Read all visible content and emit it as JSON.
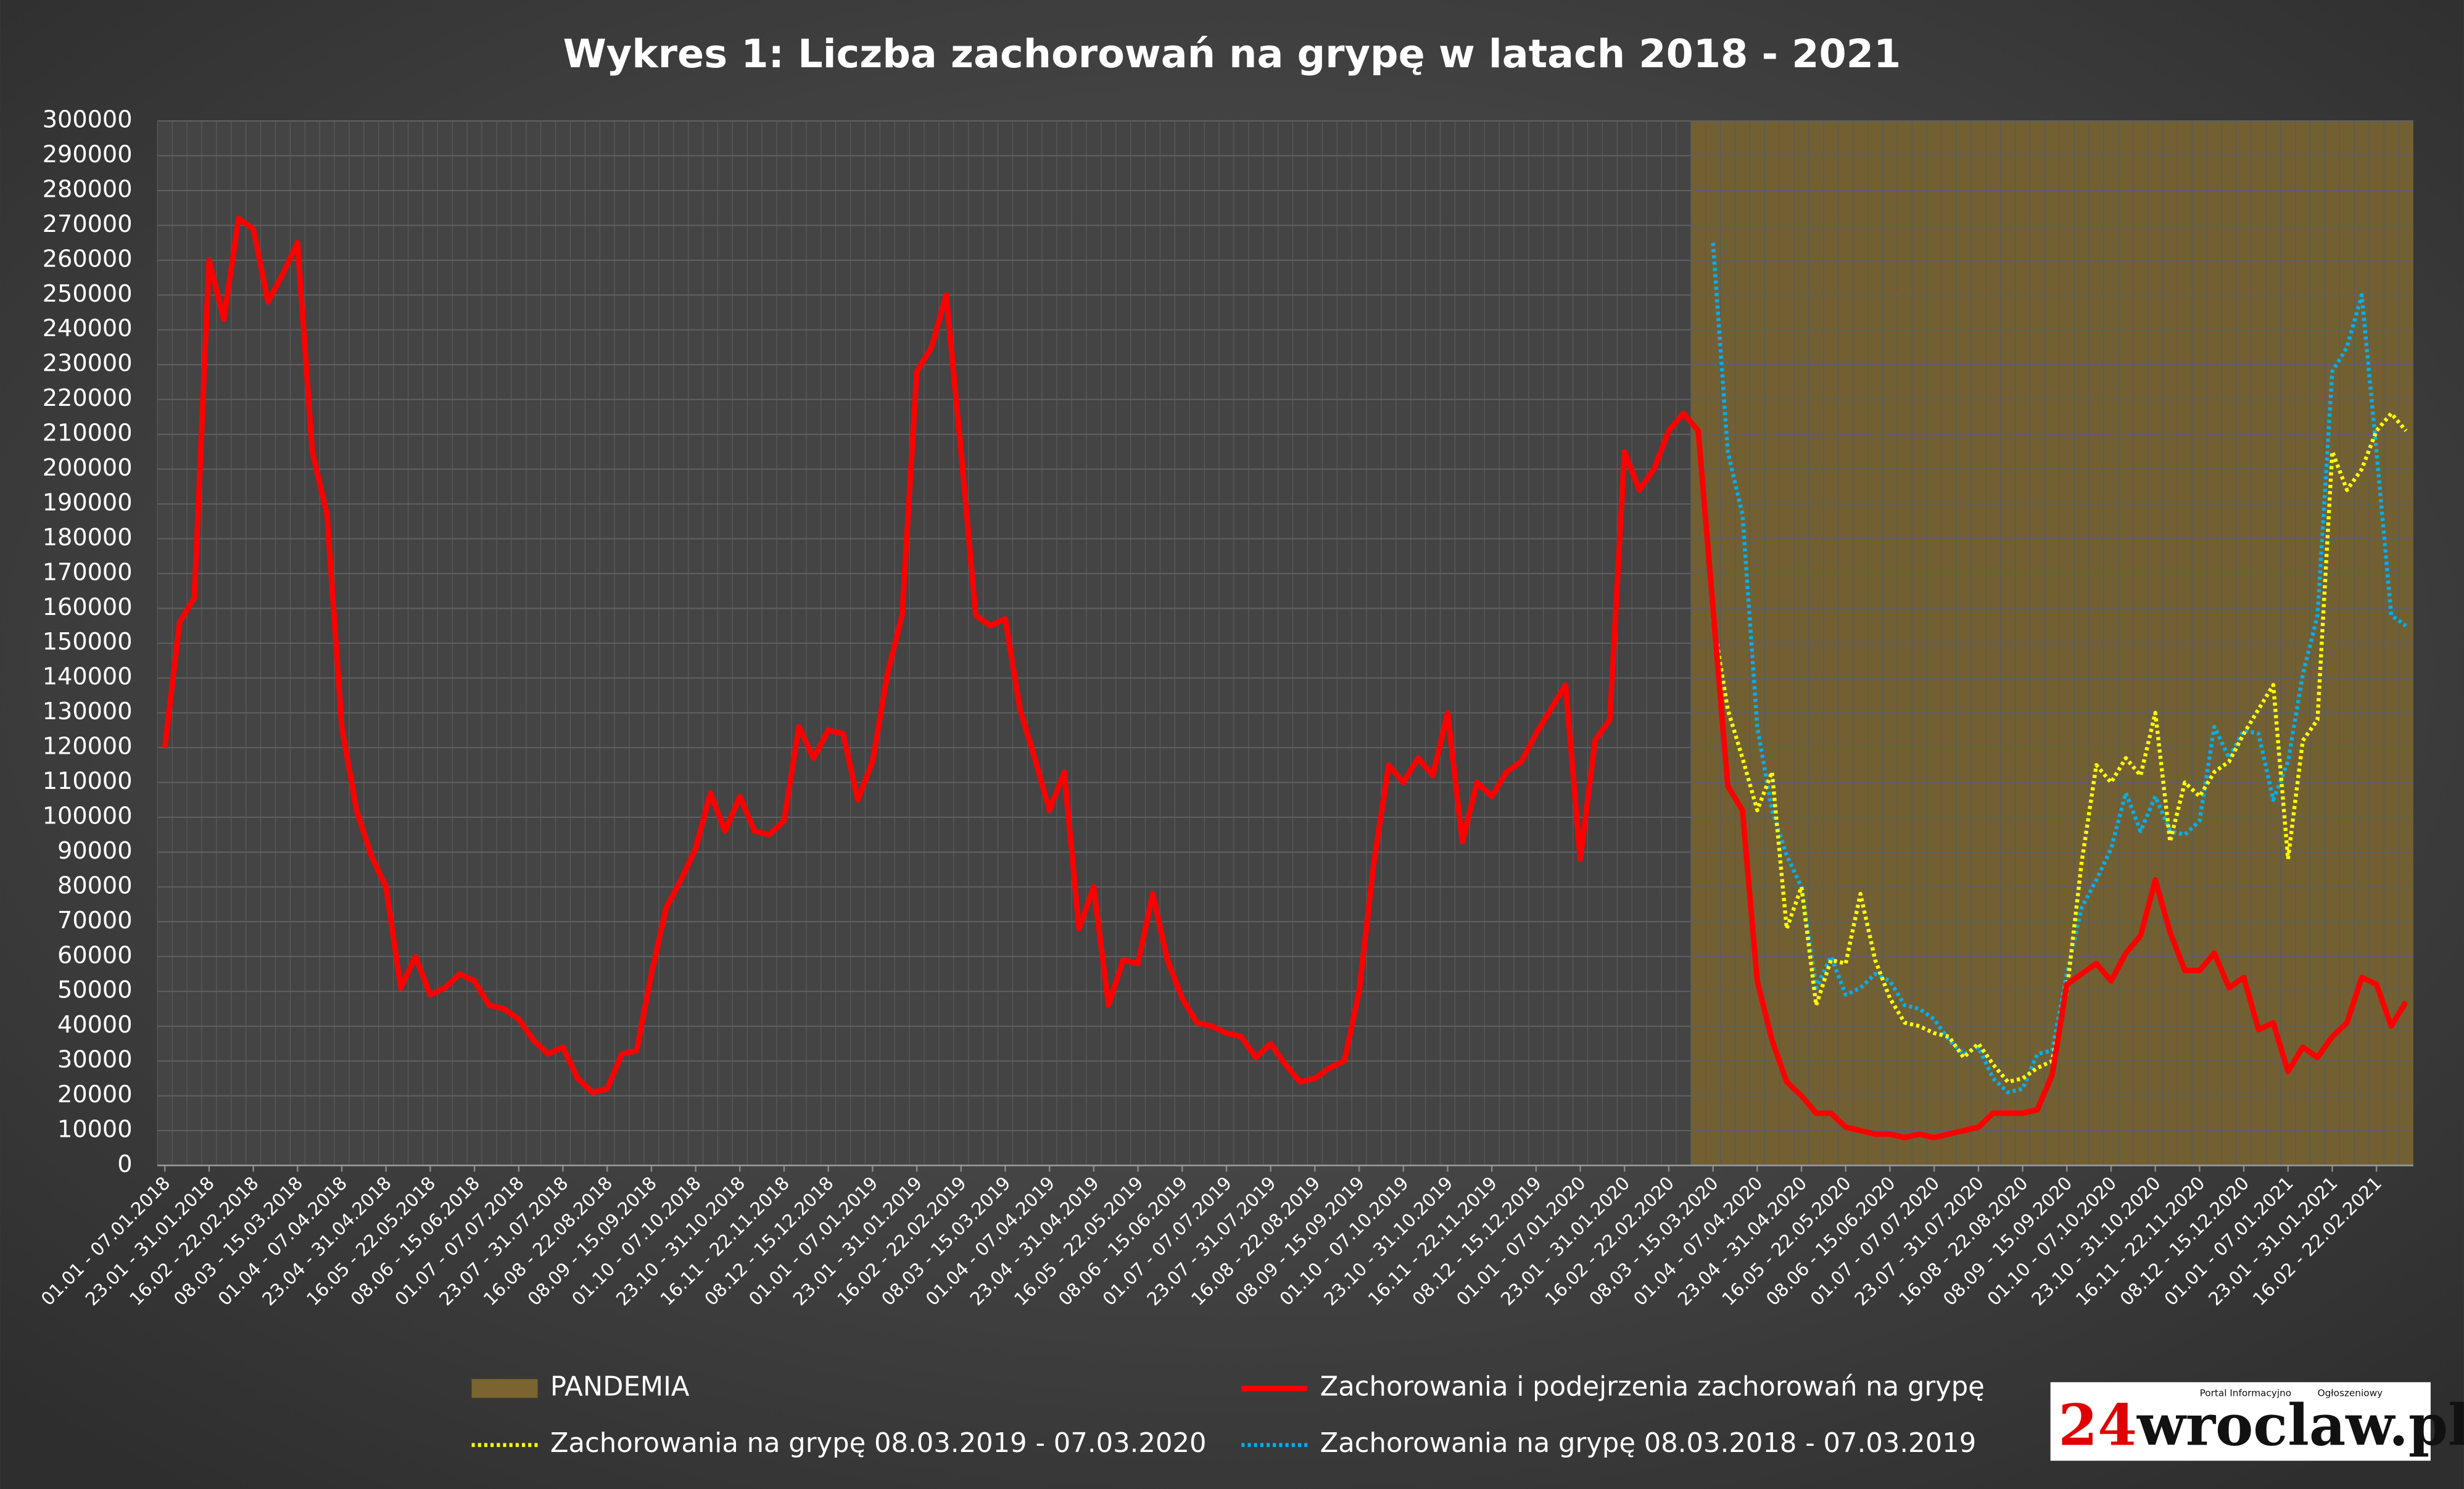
{
  "chart_data": {
    "type": "line",
    "title": "Wykres 1: Liczba zachorowań na grypę w latach 2018 - 2021",
    "categories": [
      "01.01 - 07.01.2018",
      null,
      null,
      "23.01 - 31.01.2018",
      null,
      null,
      "16.02 - 22.02.2018",
      null,
      null,
      "08.03 - 15.03.2018",
      null,
      null,
      "01.04 - 07.04.2018",
      null,
      null,
      "23.04 - 31.04.2018",
      null,
      null,
      "16.05 - 22.05.2018",
      null,
      null,
      "08.06 - 15.06.2018",
      null,
      null,
      "01.07 - 07.07.2018",
      null,
      null,
      "23.07 - 31.07.2018",
      null,
      null,
      "16.08 - 22.08.2018",
      null,
      null,
      "08.09 - 15.09.2018",
      null,
      null,
      "01.10 - 07.10.2018",
      null,
      null,
      "23.10 - 31.10.2018",
      null,
      null,
      "16.11 - 22.11.2018",
      null,
      null,
      "08.12 - 15.12.2018",
      null,
      null,
      "01.01 - 07.01.2019",
      null,
      null,
      "23.01 - 31.01.2019",
      null,
      null,
      "16.02 - 22.02.2019",
      null,
      null,
      "08.03 - 15.03.2019",
      null,
      null,
      "01.04 - 07.04.2019",
      null,
      null,
      "23.04 - 31.04.2019",
      null,
      null,
      "16.05 - 22.05.2019",
      null,
      null,
      "08.06 - 15.06.2019",
      null,
      null,
      "01.07 - 07.07.2019",
      null,
      null,
      "23.07 - 31.07.2019",
      null,
      null,
      "16.08 - 22.08.2019",
      null,
      null,
      "08.09 - 15.09.2019",
      null,
      null,
      "01.10 - 07.10.2019",
      null,
      null,
      "23.10 - 31.10.2019",
      null,
      null,
      "16.11 - 22.11.2019",
      null,
      null,
      "08.12 - 15.12.2019",
      null,
      null,
      "01.01 - 07.01.2020",
      null,
      null,
      "23.01 - 31.01.2020",
      null,
      null,
      "16.02 - 22.02.2020",
      null,
      null,
      "08.03 - 15.03.2020",
      null,
      null,
      "01.04 - 07.04.2020",
      null,
      null,
      "23.04 - 31.04.2020",
      null,
      null,
      "16.05 - 22.05.2020",
      null,
      null,
      "08.06 - 15.06.2020",
      null,
      null,
      "01.07 - 07.07.2020",
      null,
      null,
      "23.07 - 31.07.2020",
      null,
      null,
      "16.08 - 22.08.2020",
      null,
      null,
      "08.09 - 15.09.2020",
      null,
      null,
      "01.10 - 07.10.2020",
      null,
      null,
      "23.10 - 31.10.2020",
      null,
      null,
      "16.11 - 22.11.2020",
      null,
      null,
      "08.12 - 15.12.2020",
      null,
      null,
      "01.01 - 07.01.2021",
      null,
      null,
      "23.01 - 31.01.2021",
      null,
      null,
      "16.02 - 22.02.2021",
      null,
      null
    ],
    "series": [
      {
        "name": "Zachorowania i podejrzenia zachorowań na grypę",
        "color": "#ff0000",
        "dash": "solid",
        "values": [
          120000,
          156000,
          163000,
          260000,
          243000,
          272000,
          269000,
          248000,
          256000,
          265000,
          205000,
          187000,
          126000,
          102000,
          89000,
          80000,
          51000,
          60000,
          49000,
          51000,
          55000,
          53000,
          46000,
          45000,
          42000,
          36000,
          32000,
          34000,
          25000,
          21000,
          22000,
          32000,
          33000,
          55000,
          74000,
          82000,
          91000,
          107000,
          96000,
          106000,
          96000,
          95000,
          99000,
          126000,
          117000,
          125000,
          124000,
          105000,
          116000,
          141000,
          158000,
          228000,
          235000,
          250000,
          205000,
          158000,
          155000,
          157000,
          131000,
          117000,
          102000,
          113000,
          68000,
          80000,
          46000,
          59000,
          58000,
          78000,
          59000,
          48000,
          41000,
          40000,
          38000,
          37000,
          31000,
          35000,
          29000,
          24000,
          25000,
          28000,
          30000,
          50000,
          87000,
          115000,
          110000,
          117000,
          112000,
          130000,
          93000,
          110000,
          106000,
          113000,
          116000,
          124000,
          131000,
          138000,
          88000,
          122000,
          128000,
          205000,
          194000,
          200000,
          211000,
          216000,
          211000,
          160000,
          109000,
          102000,
          53000,
          36000,
          24000,
          20000,
          15000,
          15000,
          11000,
          10000,
          9000,
          9000,
          8000,
          9000,
          8000,
          9000,
          10000,
          11000,
          15000,
          15000,
          15000,
          16000,
          26000,
          52000,
          55000,
          58000,
          53000,
          61000,
          66000,
          82000,
          67000,
          56000,
          56000,
          61000,
          51000,
          54000,
          39000,
          41000,
          27000,
          34000,
          31000,
          37000,
          41000,
          54000,
          52000,
          40000,
          47000
        ]
      },
      {
        "name": "Zachorowania na grypę 08.03.2019 - 07.03.2020",
        "color": "#ffff00",
        "dash": "dotted",
        "values": [
          null,
          null,
          null,
          null,
          null,
          null,
          null,
          null,
          null,
          null,
          null,
          null,
          null,
          null,
          null,
          null,
          null,
          null,
          null,
          null,
          null,
          null,
          null,
          null,
          null,
          null,
          null,
          null,
          null,
          null,
          null,
          null,
          null,
          null,
          null,
          null,
          null,
          null,
          null,
          null,
          null,
          null,
          null,
          null,
          null,
          null,
          null,
          null,
          null,
          null,
          null,
          null,
          null,
          null,
          null,
          null,
          null,
          null,
          null,
          null,
          null,
          null,
          null,
          null,
          null,
          null,
          null,
          null,
          null,
          null,
          null,
          null,
          null,
          null,
          null,
          null,
          null,
          null,
          null,
          null,
          null,
          null,
          null,
          null,
          null,
          null,
          null,
          null,
          null,
          null,
          null,
          null,
          null,
          null,
          null,
          null,
          null,
          null,
          null,
          null,
          null,
          null,
          null,
          null,
          null,
          157000,
          131000,
          117000,
          102000,
          113000,
          68000,
          80000,
          46000,
          59000,
          58000,
          78000,
          59000,
          48000,
          41000,
          40000,
          38000,
          37000,
          31000,
          35000,
          29000,
          24000,
          25000,
          28000,
          30000,
          50000,
          87000,
          115000,
          110000,
          117000,
          112000,
          130000,
          93000,
          110000,
          106000,
          113000,
          116000,
          124000,
          131000,
          138000,
          88000,
          122000,
          128000,
          205000,
          194000,
          200000,
          211000,
          216000,
          211000
        ]
      },
      {
        "name": "Zachorowania na grypę 08.03.2018 - 07.03.2019",
        "color": "#00b0f0",
        "dash": "dotted",
        "values": [
          null,
          null,
          null,
          null,
          null,
          null,
          null,
          null,
          null,
          null,
          null,
          null,
          null,
          null,
          null,
          null,
          null,
          null,
          null,
          null,
          null,
          null,
          null,
          null,
          null,
          null,
          null,
          null,
          null,
          null,
          null,
          null,
          null,
          null,
          null,
          null,
          null,
          null,
          null,
          null,
          null,
          null,
          null,
          null,
          null,
          null,
          null,
          null,
          null,
          null,
          null,
          null,
          null,
          null,
          null,
          null,
          null,
          null,
          null,
          null,
          null,
          null,
          null,
          null,
          null,
          null,
          null,
          null,
          null,
          null,
          null,
          null,
          null,
          null,
          null,
          null,
          null,
          null,
          null,
          null,
          null,
          null,
          null,
          null,
          null,
          null,
          null,
          null,
          null,
          null,
          null,
          null,
          null,
          null,
          null,
          null,
          null,
          null,
          null,
          null,
          null,
          null,
          null,
          null,
          null,
          265000,
          205000,
          187000,
          126000,
          102000,
          89000,
          80000,
          51000,
          60000,
          49000,
          51000,
          55000,
          53000,
          46000,
          45000,
          42000,
          36000,
          32000,
          34000,
          25000,
          21000,
          22000,
          32000,
          33000,
          55000,
          74000,
          82000,
          91000,
          107000,
          96000,
          106000,
          96000,
          95000,
          99000,
          126000,
          117000,
          125000,
          124000,
          105000,
          116000,
          141000,
          158000,
          228000,
          235000,
          250000,
          205000,
          158000,
          155000
        ]
      }
    ],
    "band": {
      "name": "PANDEMIA",
      "color": "#7a6530",
      "start": "08.03 - 15.03.2020"
    },
    "ylim": [
      0,
      300000
    ],
    "yticks": [
      0,
      10000,
      20000,
      30000,
      40000,
      50000,
      60000,
      70000,
      80000,
      90000,
      100000,
      110000,
      120000,
      130000,
      140000,
      150000,
      160000,
      170000,
      180000,
      190000,
      200000,
      210000,
      220000,
      230000,
      240000,
      250000,
      260000,
      270000,
      280000,
      290000,
      300000
    ],
    "grid": true,
    "legend": "bottom"
  },
  "logo": {
    "number": "24",
    "name": "wroclaw.pl",
    "tagline_1": "Portal Informacyjno",
    "tagline_2": "Ogłoszeniowy"
  }
}
